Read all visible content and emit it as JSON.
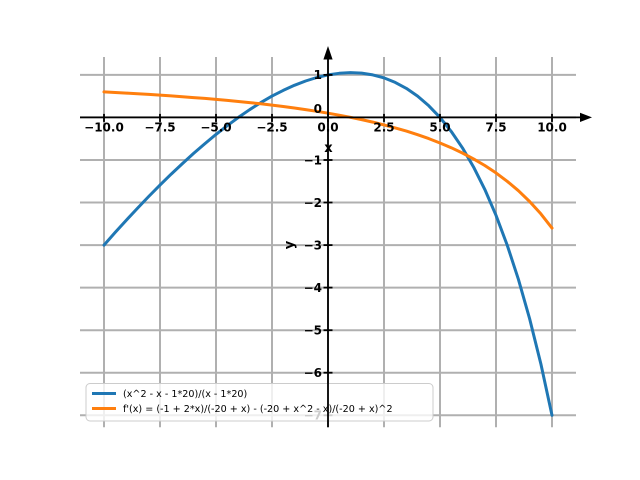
{
  "chart_data": {
    "type": "line",
    "title": "",
    "xlabel": "x",
    "ylabel": "y",
    "xlim": [
      -11.07,
      11.07
    ],
    "ylim": [
      -7.28,
      1.42
    ],
    "grid": true,
    "grid_color": "#b0b0b0",
    "axis_color": "#000000",
    "background_color": "#ffffff",
    "legend": {
      "position": "lower left",
      "frame_color": "#cccccc",
      "frame_fill": "#ffffff",
      "frame_opacity": 0.8
    },
    "x_ticks": [
      -10,
      -7.5,
      -5,
      -2.5,
      0,
      2.5,
      5,
      7.5,
      10
    ],
    "x_tick_labels": [
      "−10.0",
      "−7.5",
      "−5.0",
      "−2.5",
      "0.0",
      "2.5",
      "5.0",
      "7.5",
      "10.0"
    ],
    "y_ticks": [
      1,
      0,
      -1,
      -2,
      -3,
      -4,
      -5,
      -6,
      -7
    ],
    "y_tick_labels": [
      "1",
      "0",
      "−1",
      "−2",
      "−3",
      "−4",
      "−5",
      "−6",
      "−7"
    ],
    "x": [
      -10,
      -9.5,
      -9,
      -8.5,
      -8,
      -7.5,
      -7,
      -6.5,
      -6,
      -5.5,
      -5,
      -4.5,
      -4,
      -3.5,
      -3,
      -2.5,
      -2,
      -1.5,
      -1,
      -0.5,
      0,
      0.5,
      1,
      1.5,
      2,
      2.5,
      3,
      3.5,
      4,
      4.5,
      5,
      5.5,
      6,
      6.5,
      7,
      7.5,
      8,
      8.5,
      9,
      9.5,
      10
    ],
    "series": [
      {
        "name": "(x^2 - x - 1*20)/(x - 1*20)",
        "color": "#1f77b4",
        "values": [
          -3,
          -2.703,
          -2.414,
          -2.132,
          -1.857,
          -1.591,
          -1.333,
          -1.085,
          -0.846,
          -0.618,
          -0.4,
          -0.194,
          0,
          0.181,
          0.348,
          0.5,
          0.636,
          0.756,
          0.857,
          0.939,
          1,
          1.038,
          1.053,
          1.041,
          1,
          0.929,
          0.824,
          0.682,
          0.5,
          0.274,
          0,
          -0.328,
          -0.714,
          -1.167,
          -1.692,
          -2.3,
          -3,
          -3.804,
          -4.727,
          -5.786,
          -7
        ]
      },
      {
        "name": "f'(x) = (-1 + 2*x)/(-20 + x) - (-20 + x^2 - x)/(-20 + x)^2",
        "color": "#ff7f0e",
        "values": [
          0.6,
          0.586,
          0.572,
          0.557,
          0.541,
          0.524,
          0.506,
          0.487,
          0.467,
          0.446,
          0.424,
          0.4,
          0.375,
          0.348,
          0.319,
          0.289,
          0.256,
          0.221,
          0.184,
          0.143,
          0.1,
          0.053,
          0.003,
          -0.052,
          -0.111,
          -0.176,
          -0.246,
          -0.322,
          -0.406,
          -0.498,
          -0.6,
          -0.712,
          -0.837,
          -0.975,
          -1.13,
          -1.304,
          -1.5,
          -1.722,
          -1.975,
          -2.265,
          -2.6
        ]
      }
    ]
  }
}
